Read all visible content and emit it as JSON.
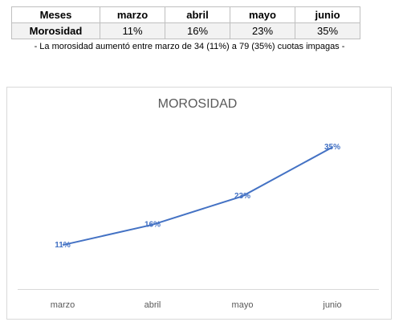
{
  "table": {
    "header": [
      "Meses",
      "marzo",
      "abril",
      "mayo",
      "junio"
    ],
    "rows": [
      [
        "Morosidad",
        "11%",
        "16%",
        "23%",
        "35%"
      ]
    ]
  },
  "note": "- La morosidad aumentó entre marzo de 34 (11%) a 79 (35%) cuotas impagas -",
  "chart_data": {
    "type": "line",
    "title": "MOROSIDAD",
    "categories": [
      "marzo",
      "abril",
      "mayo",
      "junio"
    ],
    "values": [
      11,
      16,
      23,
      35
    ],
    "value_labels": [
      "11%",
      "16%",
      "23%",
      "35%"
    ],
    "color": "#4472c4",
    "ylim": [
      0,
      40
    ]
  }
}
